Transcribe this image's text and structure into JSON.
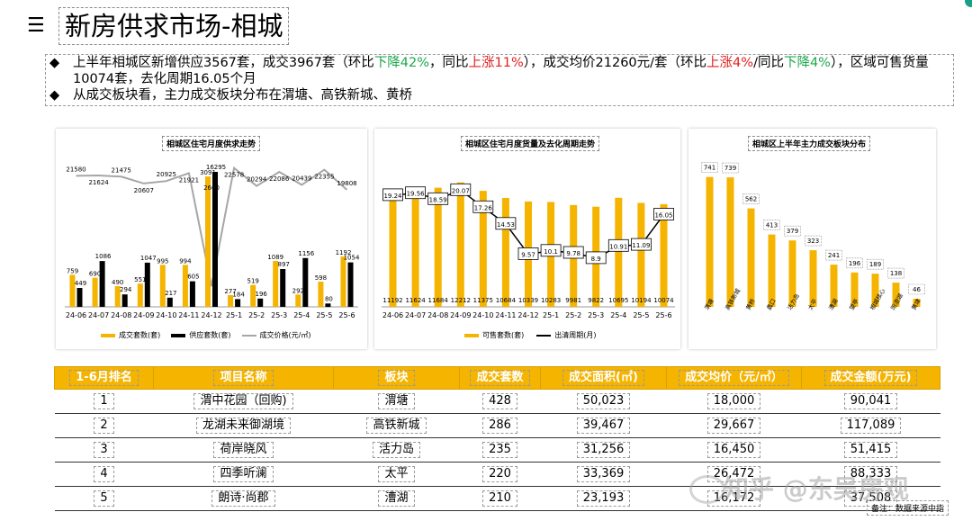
{
  "title": "新房供求市场-相城",
  "summary": {
    "line1": {
      "pre": "上半年相城区新增供应3567套，成交3967套（环比",
      "mom_dir": "下降42%",
      "mid": "，同比",
      "yoy_dir": "上涨11%",
      "post": "），成交均价21260元/套（环比",
      "price_mom": "上涨4%",
      "slash": "/同比",
      "price_yoy": "下降4%",
      "tail": "），区域可售货量10074套，去化周期16.05个月"
    },
    "line2": "从成交板块看，主力成交板块分布在渭塘、高铁新城、黄桥"
  },
  "colors": {
    "accent": "#f5b400",
    "black": "#000000",
    "gray": "#a6a6a6",
    "up": "#e02020",
    "down": "#1ca84b"
  },
  "chart_data": [
    {
      "type": "bar",
      "title": "相城区住宅月度供求走势",
      "categories": [
        "24-06",
        "24-07",
        "24-08",
        "24-09",
        "24-10",
        "24-11",
        "24-12",
        "25-1",
        "25-2",
        "25-3",
        "25-4",
        "25-5",
        "25-6"
      ],
      "series": [
        {
          "name": "成交套数(套)",
          "kind": "bar",
          "values": [
            759,
            690,
            490,
            551,
            995,
            994,
            3091,
            277,
            519,
            1089,
            292,
            598,
            1192
          ]
        },
        {
          "name": "供应套数(套)",
          "kind": "bar",
          "values": [
            449,
            1086,
            294,
            1047,
            217,
            605,
            16295,
            184,
            196,
            897,
            1156,
            80,
            1054
          ]
        },
        {
          "name": "成交价格(元/㎡)",
          "kind": "line",
          "values": [
            21580,
            21624,
            21475,
            20607,
            20925,
            21921,
            2660,
            22578,
            20294,
            22086,
            20439,
            22355,
            19808
          ]
        }
      ]
    },
    {
      "type": "bar",
      "title": "相城区住宅月度货量及去化周期走势",
      "categories": [
        "24-06",
        "24-07",
        "24-08",
        "24-09",
        "24-10",
        "24-11",
        "24-12",
        "25-1",
        "25-2",
        "25-3",
        "25-4",
        "25-5",
        "25-6"
      ],
      "series": [
        {
          "name": "可售套数(套)",
          "kind": "bar",
          "values": [
            11192,
            11624,
            11684,
            12212,
            11375,
            10684,
            10339,
            10283,
            9981,
            9822,
            10695,
            10194,
            10074
          ]
        },
        {
          "name": "出清周期(月)",
          "kind": "line",
          "values": [
            19.24,
            19.56,
            18.59,
            20.07,
            17.26,
            14.53,
            9.57,
            10.1,
            9.78,
            8.9,
            10.91,
            11.09,
            16.05
          ]
        }
      ]
    },
    {
      "type": "bar",
      "title": "相城区上半年主力成交板块分布",
      "categories": [
        "渭塘",
        "高铁新城",
        "黄桥",
        "蠡口",
        "活力岛",
        "太平",
        "漕湖",
        "望亭",
        "相城核心",
        "阳澄湖",
        "黄埭"
      ],
      "values": [
        741,
        739,
        562,
        413,
        379,
        323,
        241,
        196,
        189,
        138,
        46
      ]
    }
  ],
  "table": {
    "headers": [
      "1-6月排名",
      "项目名称",
      "板块",
      "成交套数",
      "成交面积(㎡)",
      "成交均价（元/㎡）",
      "成交金额(万元)"
    ],
    "rows": [
      [
        "1",
        "渭中花园（回购)",
        "渭塘",
        "428",
        "50,023",
        "18,000",
        "90,041"
      ],
      [
        "2",
        "龙湖未来御湖境",
        "高铁新城",
        "286",
        "39,467",
        "29,667",
        "117,089"
      ],
      [
        "3",
        "荷岸晓风",
        "活力岛",
        "235",
        "31,256",
        "16,450",
        "51,415"
      ],
      [
        "4",
        "四季听澜",
        "太平",
        "220",
        "33,369",
        "26,472",
        "88,333"
      ],
      [
        "5",
        "朗诗·尚郡",
        "漕湖",
        "210",
        "23,193",
        "16,172",
        "37,508"
      ]
    ]
  },
  "note": "备注：数据来源中指",
  "watermark": "知乎 @东吴房观",
  "menu_icon": "hamburger-menu-icon"
}
